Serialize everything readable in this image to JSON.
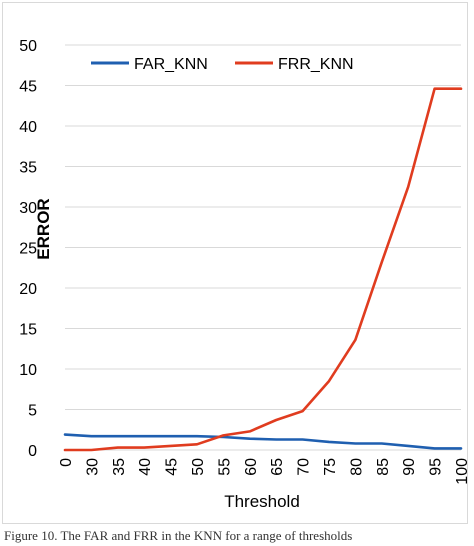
{
  "chart_data": {
    "type": "line",
    "title": "",
    "xlabel": "Threshold",
    "ylabel": "ERROR",
    "x": [
      "0",
      "30",
      "35",
      "40",
      "45",
      "50",
      "55",
      "60",
      "65",
      "70",
      "75",
      "80",
      "85",
      "90",
      "95",
      "100"
    ],
    "ylim": [
      0,
      50
    ],
    "yticks": [
      "0",
      "5",
      "10",
      "15",
      "20",
      "25",
      "30",
      "35",
      "40",
      "45",
      "50"
    ],
    "grid": true,
    "legend": "top",
    "series": [
      {
        "name": "FAR_KNN",
        "color": "#1f5fb0",
        "values": [
          1.9,
          1.7,
          1.7,
          1.7,
          1.7,
          1.7,
          1.6,
          1.4,
          1.3,
          1.3,
          1.0,
          0.8,
          0.8,
          0.5,
          0.2,
          0.2
        ]
      },
      {
        "name": "FRR_KNN",
        "color": "#e03c1f",
        "values": [
          0.0,
          0.0,
          0.3,
          0.3,
          0.5,
          0.7,
          1.8,
          2.3,
          3.7,
          4.8,
          8.5,
          13.6,
          23.2,
          32.5,
          44.6,
          44.6
        ]
      }
    ]
  },
  "caption": "Figure 10. The FAR and FRR in the KNN for a range of thresholds"
}
